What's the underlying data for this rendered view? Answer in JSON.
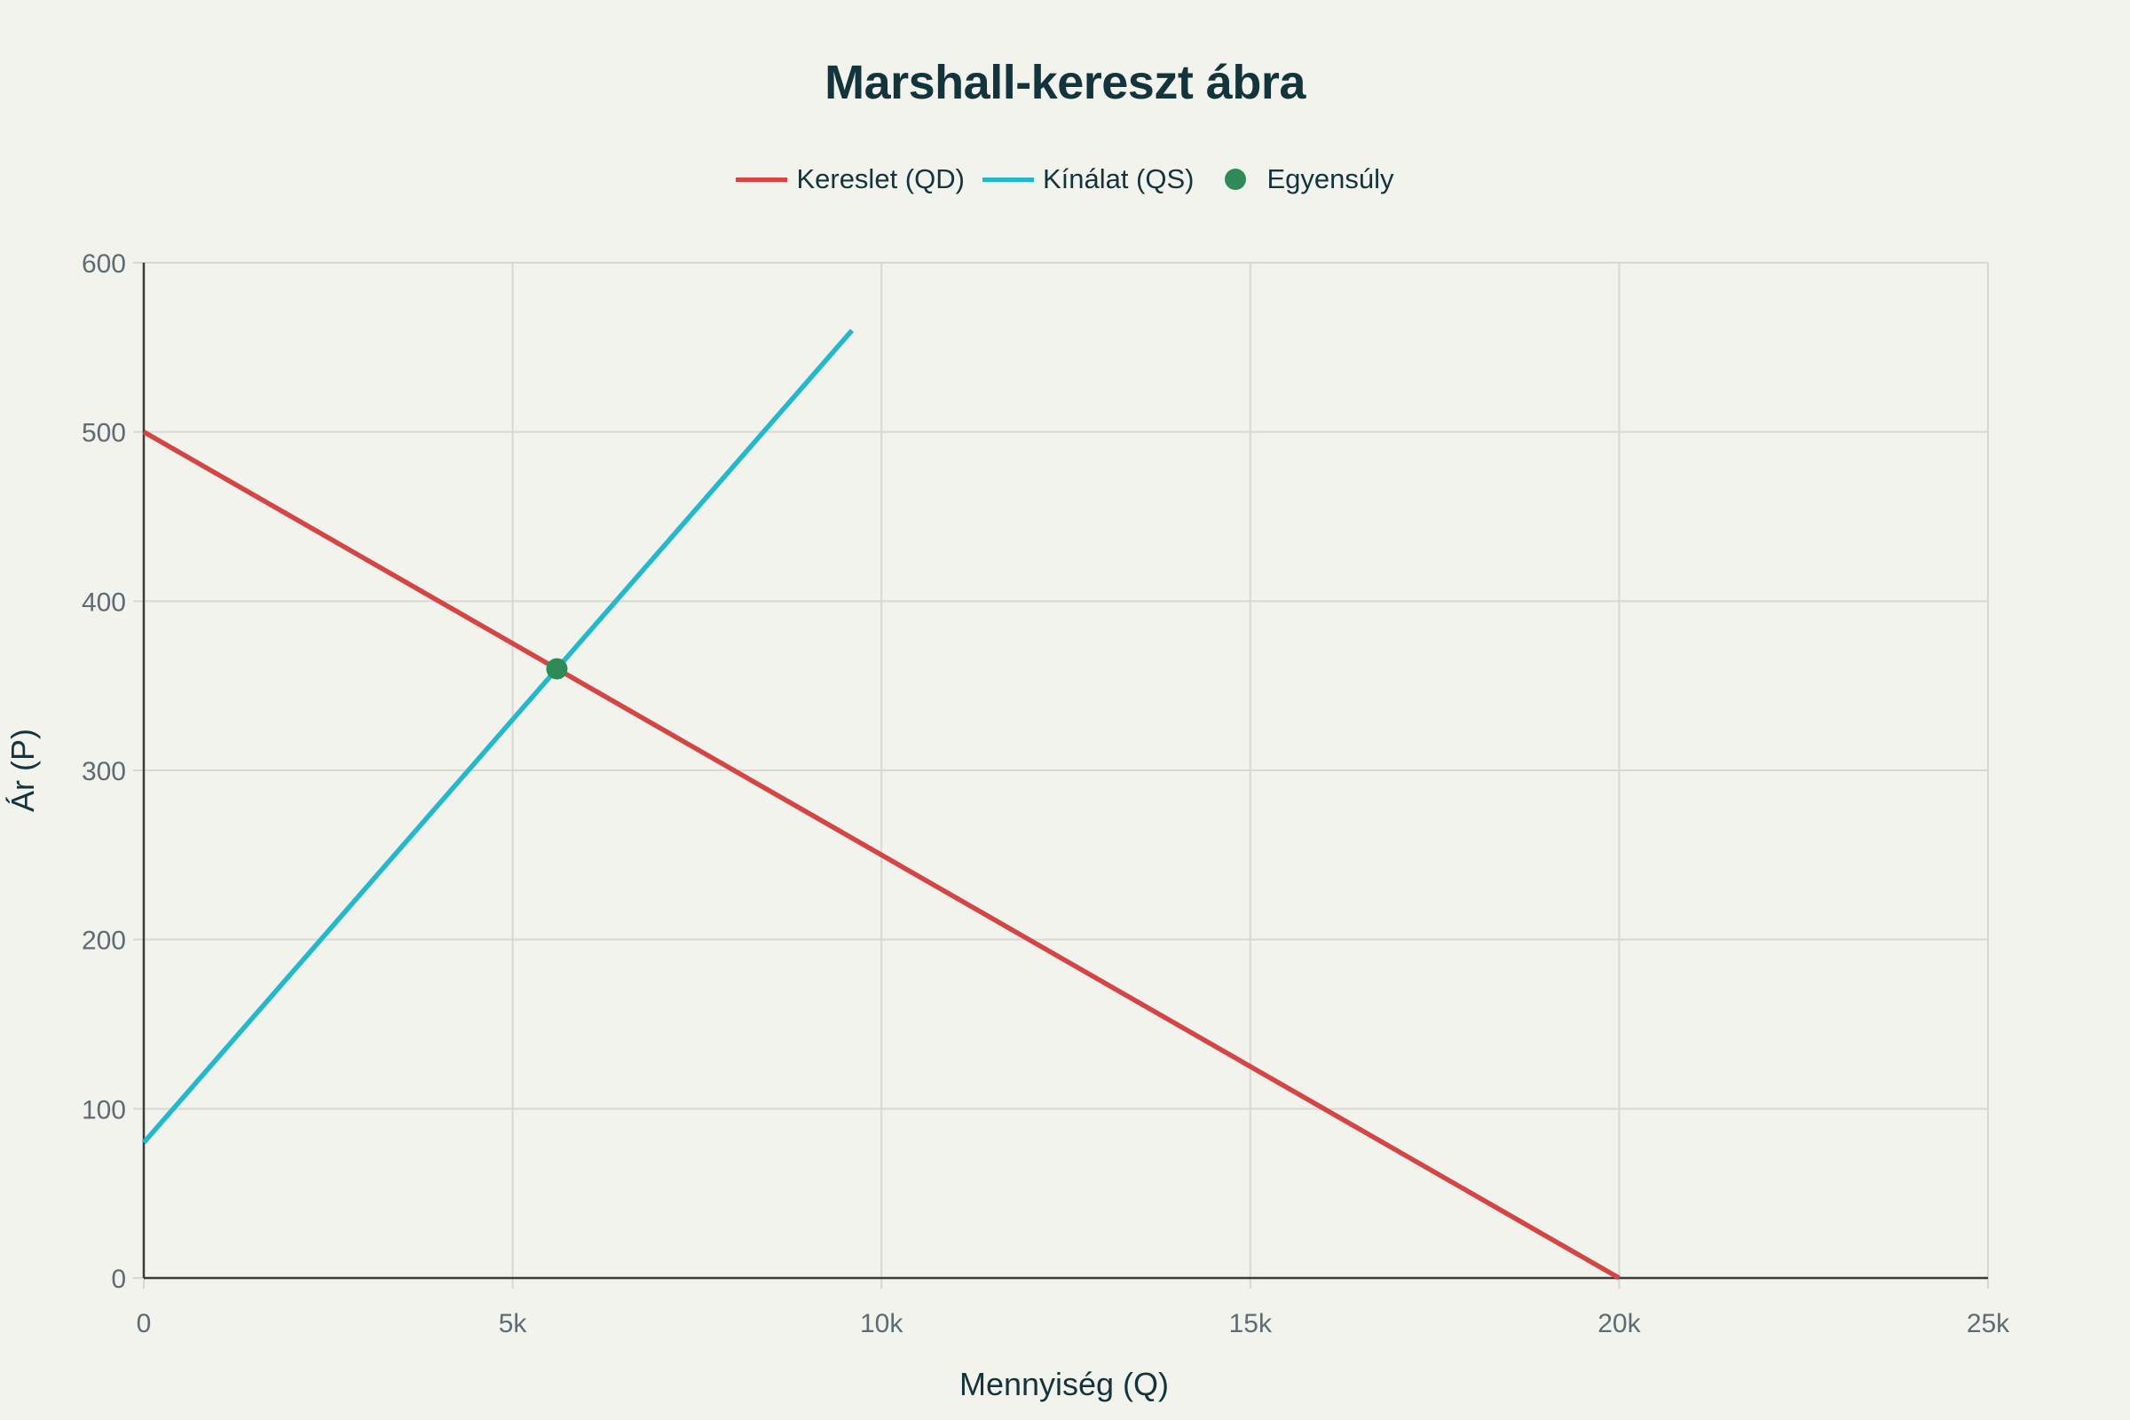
{
  "chart_data": {
    "type": "line",
    "title": "Marshall-kereszt ábra",
    "xlabel": "Mennyiség (Q)",
    "ylabel": "Ár (P)",
    "xlim": [
      0,
      25000
    ],
    "ylim": [
      0,
      600
    ],
    "x_ticks": [
      0,
      5000,
      10000,
      15000,
      20000,
      25000
    ],
    "x_tick_labels": [
      "0",
      "5k",
      "10k",
      "15k",
      "20k",
      "25k"
    ],
    "y_ticks": [
      0,
      100,
      200,
      300,
      400,
      500,
      600
    ],
    "y_tick_labels": [
      "0",
      "100",
      "200",
      "300",
      "400",
      "500",
      "600"
    ],
    "grid": true,
    "legend_position": "top-center",
    "series": [
      {
        "name": "Kereslet (QD)",
        "type": "line",
        "color": "#d64545",
        "x": [
          0,
          20000
        ],
        "y": [
          500,
          0
        ]
      },
      {
        "name": "Kínálat (QS)",
        "type": "line",
        "color": "#23b8cc",
        "x": [
          0,
          9600
        ],
        "y": [
          80,
          560
        ]
      },
      {
        "name": "Egyensúly",
        "type": "scatter",
        "color": "#2e8b57",
        "x": [
          5600
        ],
        "y": [
          360
        ]
      }
    ]
  },
  "legend": [
    {
      "label": "Kereslet (QD)",
      "color": "#d64545",
      "kind": "line"
    },
    {
      "label": "Kínálat (QS)",
      "color": "#23b8cc",
      "kind": "line"
    },
    {
      "label": "Egyensúly",
      "color": "#2e8b57",
      "kind": "dot"
    }
  ]
}
